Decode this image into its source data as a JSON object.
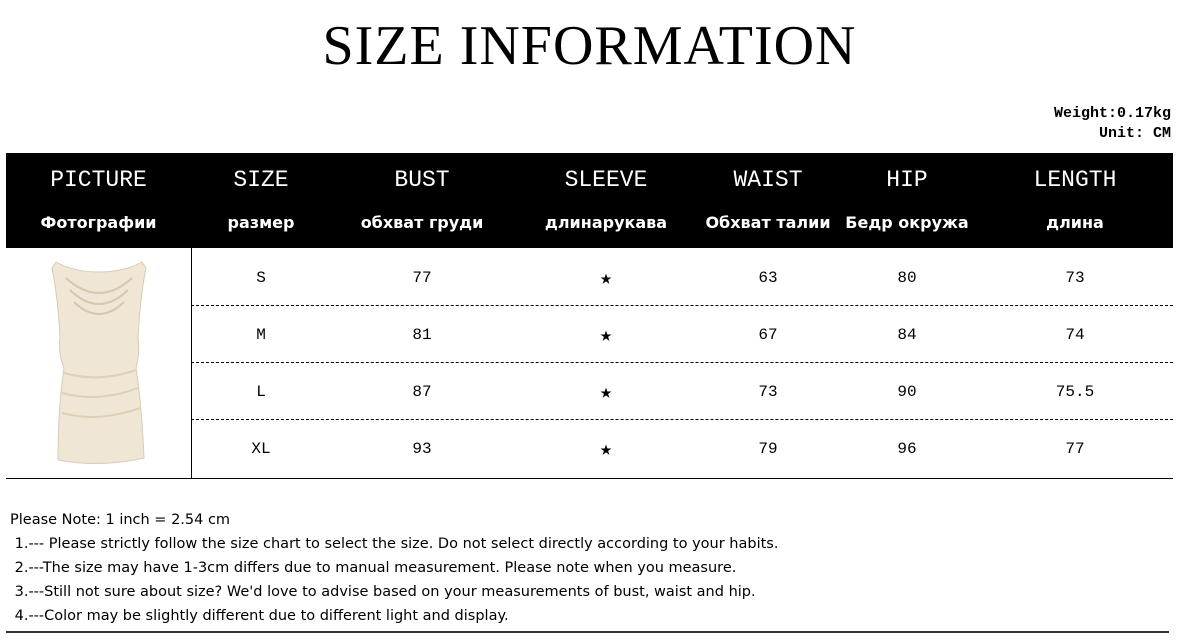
{
  "title": "SIZE INFORMATION",
  "weight": "Weight:0.17kg",
  "unit": "Unit: CM",
  "columns": [
    {
      "en": "PICTURE",
      "ru": "Фотографии"
    },
    {
      "en": "SIZE",
      "ru": "размер"
    },
    {
      "en": "BUST",
      "ru": "обхват груди"
    },
    {
      "en": "SLEEVE",
      "ru": "длинарукава"
    },
    {
      "en": "WAIST",
      "ru": "Обхват талии"
    },
    {
      "en": "HIP",
      "ru": "Бедр окружа"
    },
    {
      "en": "LENGTH",
      "ru": "длина"
    }
  ],
  "rows": [
    {
      "size": "S",
      "bust": "77",
      "sleeve": "★",
      "waist": "63",
      "hip": "80",
      "length": "73"
    },
    {
      "size": "M",
      "bust": "81",
      "sleeve": "★",
      "waist": "67",
      "hip": "84",
      "length": "74"
    },
    {
      "size": "L",
      "bust": "87",
      "sleeve": "★",
      "waist": "73",
      "hip": "90",
      "length": "75.5"
    },
    {
      "size": "XL",
      "bust": "93",
      "sleeve": "★",
      "waist": "79",
      "hip": "96",
      "length": "77"
    }
  ],
  "notes": [
    "Please Note: 1 inch = 2.54 cm",
    " 1.--- Please strictly follow the size chart to select the size. Do not select directly according to your habits.",
    " 2.---The size may have 1-3cm differs due to manual measurement. Please note when you measure.",
    " 3.---Still not sure about size? We'd love to advise based on your measurements of bust, waist and hip.",
    " 4.---Color may be slightly different due to different light and display."
  ],
  "colors": {
    "header_bg": "#000000",
    "dress": "#efe6d6"
  }
}
